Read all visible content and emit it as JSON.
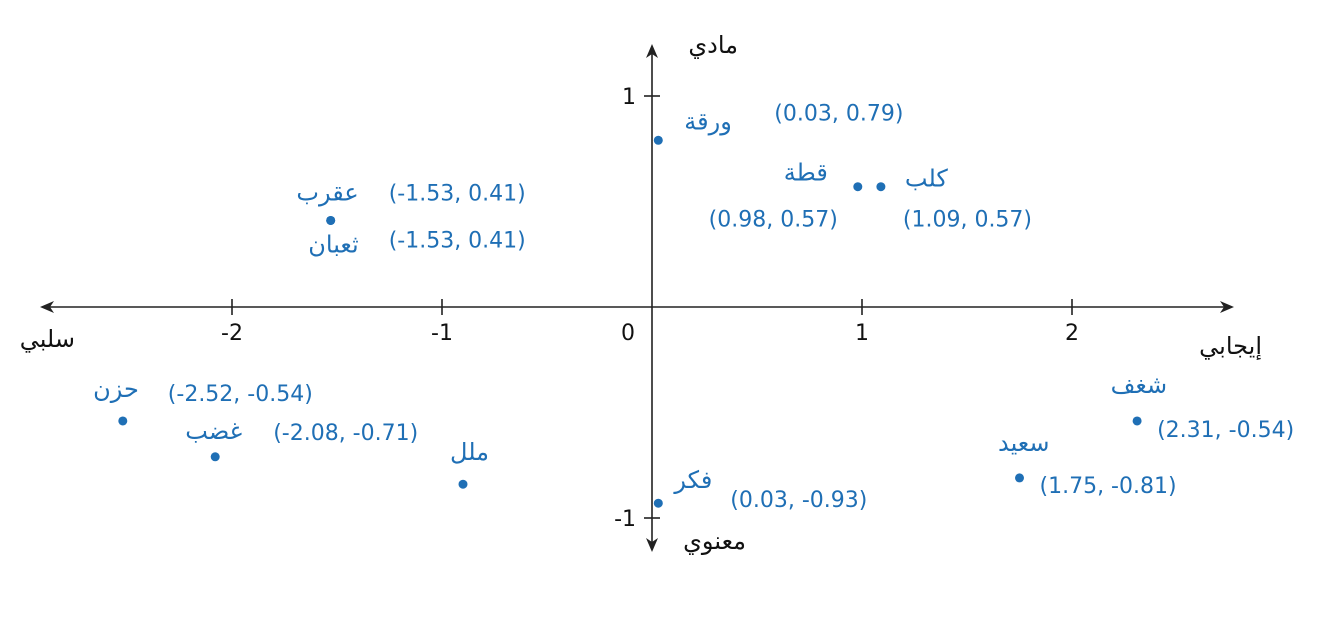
{
  "chart_data": {
    "type": "scatter",
    "title": "",
    "xlabel": "",
    "ylabel": "",
    "xlim": [
      -2.9,
      2.8
    ],
    "ylim": [
      -1.1,
      1.25
    ],
    "grid": false,
    "legend": "none",
    "x_ticks": [
      {
        "value": -2,
        "label": "-2"
      },
      {
        "value": -1,
        "label": "-1"
      },
      {
        "value": 0,
        "label": "0"
      },
      {
        "value": 1,
        "label": "1"
      },
      {
        "value": 2,
        "label": "2"
      }
    ],
    "y_ticks": [
      {
        "value": 1,
        "label": "1"
      },
      {
        "value": -1,
        "label": "-1"
      }
    ],
    "axis_poles": {
      "x_negative": "سلبي",
      "x_positive": "إيجابي",
      "y_positive": "مادي",
      "y_negative": "معنوي"
    },
    "points": [
      {
        "word": "ورقة",
        "x": 0.03,
        "y": 0.79,
        "coord_label": "(0.03, 0.79)"
      },
      {
        "word": "قطة",
        "x": 0.98,
        "y": 0.57,
        "coord_label": "(0.98, 0.57)"
      },
      {
        "word": "كلب",
        "x": 1.09,
        "y": 0.57,
        "coord_label": "(1.09, 0.57)"
      },
      {
        "word": "عقرب",
        "x": -1.53,
        "y": 0.41,
        "coord_label": "(-1.53, 0.41)"
      },
      {
        "word": "ثعبان",
        "x": -1.53,
        "y": 0.41,
        "coord_label": "(-1.53, 0.41)"
      },
      {
        "word": "حزن",
        "x": -2.52,
        "y": -0.54,
        "coord_label": "(-2.52, -0.54)"
      },
      {
        "word": "غضب",
        "x": -2.08,
        "y": -0.71,
        "coord_label": "(-2.08, -0.71)"
      },
      {
        "word": "ملل",
        "x": -0.9,
        "y": -0.84,
        "coord_label": ""
      },
      {
        "word": "فكر",
        "x": 0.03,
        "y": -0.93,
        "coord_label": "(0.03, -0.93)"
      },
      {
        "word": "سعيد",
        "x": 1.75,
        "y": -0.81,
        "coord_label": "(1.75, -0.81)"
      },
      {
        "word": "شغف",
        "x": 2.31,
        "y": -0.54,
        "coord_label": "(2.31, -0.54)"
      }
    ],
    "colors": {
      "points": "#1f6fb5",
      "axes": "#222222"
    }
  }
}
